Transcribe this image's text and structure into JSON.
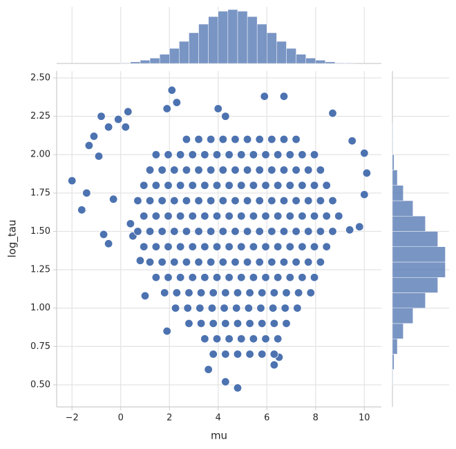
{
  "chart_data": [
    {
      "type": "scatter",
      "xlabel": "mu",
      "ylabel": "log_tau",
      "xlim": [
        -2.63,
        10.7
      ],
      "ylim": [
        0.356,
        2.545
      ],
      "xticks": [
        {
          "value": -2,
          "label": "−2"
        },
        0,
        2,
        4,
        6,
        8,
        10
      ],
      "yticks": [
        {
          "value": 0.5,
          "label": "0.50"
        },
        {
          "value": 0.75,
          "label": "0.75"
        },
        {
          "value": 1.0,
          "label": "1.00"
        },
        {
          "value": 1.25,
          "label": "1.25"
        },
        {
          "value": 1.5,
          "label": "1.50"
        },
        {
          "value": 1.75,
          "label": "1.75"
        },
        {
          "value": 2.0,
          "label": "2.00"
        },
        {
          "value": 2.25,
          "label": "2.25"
        },
        {
          "value": 2.5,
          "label": "2.50"
        }
      ],
      "grid": true,
      "series": [
        {
          "color": "#4c72b0",
          "x": [
            -2,
            -1.6,
            -1.4,
            -1.3,
            -1.1,
            -0.9,
            -0.8,
            -0.7,
            -0.5,
            -0.5,
            -0.3,
            -0.1,
            0.2,
            0.3,
            0.4,
            0.5,
            1.9,
            2.1,
            2.3,
            4.0,
            4.3,
            5.9,
            6.7,
            8.7,
            9.5,
            10.0,
            10.1,
            10.0,
            9.8,
            9.4,
            4.3,
            4.8,
            3.6,
            6.3,
            6.5,
            1.9,
            1.0,
            0.8,
            3.8,
            4.3,
            4.8,
            5.3,
            5.8,
            6.3,
            3.45,
            3.95,
            4.45,
            4.95,
            5.45,
            5.95,
            6.45,
            2.8,
            3.3,
            3.8,
            4.3,
            4.8,
            5.3,
            5.8,
            6.3,
            6.8,
            2.25,
            2.75,
            3.25,
            3.75,
            4.25,
            4.75,
            5.25,
            5.75,
            6.25,
            6.75,
            7.25,
            1.8,
            2.3,
            2.8,
            3.3,
            3.8,
            4.3,
            4.8,
            5.3,
            5.8,
            6.3,
            6.8,
            7.3,
            7.8,
            1.45,
            1.95,
            2.45,
            2.95,
            3.45,
            3.95,
            4.45,
            4.95,
            5.45,
            5.95,
            6.45,
            6.95,
            7.45,
            7.95,
            1.2,
            1.7,
            2.2,
            2.7,
            3.2,
            3.7,
            4.2,
            4.7,
            5.2,
            5.7,
            6.2,
            6.7,
            7.2,
            7.7,
            8.2,
            0.95,
            1.45,
            1.95,
            2.45,
            2.95,
            3.45,
            3.95,
            4.45,
            4.95,
            5.45,
            5.95,
            6.45,
            6.95,
            7.45,
            7.95,
            8.45,
            0.7,
            1.2,
            1.7,
            2.2,
            2.7,
            3.2,
            3.7,
            4.2,
            4.7,
            5.2,
            5.7,
            6.2,
            6.7,
            7.2,
            7.7,
            8.2,
            8.7,
            0.95,
            1.45,
            1.95,
            2.45,
            2.95,
            3.45,
            3.95,
            4.45,
            4.95,
            5.45,
            5.95,
            6.45,
            6.95,
            7.45,
            7.95,
            8.45,
            8.95,
            0.7,
            1.2,
            1.7,
            2.2,
            2.7,
            3.2,
            3.7,
            4.2,
            4.7,
            5.2,
            5.7,
            6.2,
            6.7,
            7.2,
            7.7,
            8.2,
            8.7,
            0.95,
            1.45,
            1.95,
            2.45,
            2.95,
            3.45,
            3.95,
            4.45,
            4.95,
            5.45,
            5.95,
            6.45,
            6.95,
            7.45,
            7.95,
            8.45,
            1.2,
            1.7,
            2.2,
            2.7,
            3.2,
            3.7,
            4.2,
            4.7,
            5.2,
            5.7,
            6.2,
            6.7,
            7.2,
            7.7,
            8.2,
            1.45,
            1.95,
            2.45,
            2.95,
            3.45,
            3.95,
            4.45,
            4.95,
            5.45,
            5.95,
            6.45,
            6.95,
            7.45,
            7.95,
            2.7,
            3.2,
            3.7,
            4.2,
            4.7,
            5.2,
            5.7,
            6.2,
            6.7,
            7.2
          ],
          "values": [
            1.83,
            1.64,
            1.75,
            2.06,
            2.12,
            1.99,
            2.25,
            1.48,
            1.42,
            2.18,
            1.71,
            2.23,
            2.18,
            2.28,
            1.55,
            1.47,
            2.3,
            2.42,
            2.34,
            2.3,
            2.25,
            2.38,
            2.38,
            2.27,
            2.09,
            2.01,
            1.88,
            1.74,
            1.53,
            1.51,
            0.52,
            0.48,
            0.6,
            0.63,
            0.68,
            0.85,
            1.08,
            1.31,
            0.7,
            0.7,
            0.7,
            0.7,
            0.7,
            0.7,
            0.8,
            0.8,
            0.8,
            0.8,
            0.8,
            0.8,
            0.8,
            0.9,
            0.9,
            0.9,
            0.9,
            0.9,
            0.9,
            0.9,
            0.9,
            0.9,
            1.0,
            1.0,
            1.0,
            1.0,
            1.0,
            1.0,
            1.0,
            1.0,
            1.0,
            1.0,
            1.0,
            1.1,
            1.1,
            1.1,
            1.1,
            1.1,
            1.1,
            1.1,
            1.1,
            1.1,
            1.1,
            1.1,
            1.1,
            1.1,
            1.2,
            1.2,
            1.2,
            1.2,
            1.2,
            1.2,
            1.2,
            1.2,
            1.2,
            1.2,
            1.2,
            1.2,
            1.2,
            1.2,
            1.3,
            1.3,
            1.3,
            1.3,
            1.3,
            1.3,
            1.3,
            1.3,
            1.3,
            1.3,
            1.3,
            1.3,
            1.3,
            1.3,
            1.3,
            1.4,
            1.4,
            1.4,
            1.4,
            1.4,
            1.4,
            1.4,
            1.4,
            1.4,
            1.4,
            1.4,
            1.4,
            1.4,
            1.4,
            1.4,
            1.4,
            1.5,
            1.5,
            1.5,
            1.5,
            1.5,
            1.5,
            1.5,
            1.5,
            1.5,
            1.5,
            1.5,
            1.5,
            1.5,
            1.5,
            1.5,
            1.5,
            1.5,
            1.6,
            1.6,
            1.6,
            1.6,
            1.6,
            1.6,
            1.6,
            1.6,
            1.6,
            1.6,
            1.6,
            1.6,
            1.6,
            1.6,
            1.6,
            1.6,
            1.6,
            1.7,
            1.7,
            1.7,
            1.7,
            1.7,
            1.7,
            1.7,
            1.7,
            1.7,
            1.7,
            1.7,
            1.7,
            1.7,
            1.7,
            1.7,
            1.7,
            1.7,
            1.8,
            1.8,
            1.8,
            1.8,
            1.8,
            1.8,
            1.8,
            1.8,
            1.8,
            1.8,
            1.8,
            1.8,
            1.8,
            1.8,
            1.8,
            1.8,
            1.9,
            1.9,
            1.9,
            1.9,
            1.9,
            1.9,
            1.9,
            1.9,
            1.9,
            1.9,
            1.9,
            1.9,
            1.9,
            1.9,
            1.9,
            2.0,
            2.0,
            2.0,
            2.0,
            2.0,
            2.0,
            2.0,
            2.0,
            2.0,
            2.0,
            2.0,
            2.0,
            2.0,
            2.0,
            2.1,
            2.1,
            2.1,
            2.1,
            2.1,
            2.1,
            2.1,
            2.1,
            2.1,
            2.1
          ]
        }
      ]
    },
    {
      "type": "histogram",
      "orientation": "vertical",
      "color": "#4c72b0",
      "ylim": [
        0,
        105
      ],
      "bins": [
        0,
        0.4,
        0.8,
        1.2,
        1.6,
        2.0,
        2.4,
        2.8,
        3.2,
        3.6,
        4.0,
        4.4,
        4.8,
        5.2,
        5.6,
        6.0,
        6.4,
        6.8,
        7.2,
        7.6,
        8.0,
        8.4,
        8.8,
        9.2,
        9.6
      ],
      "values": [
        1,
        3,
        6,
        10,
        17,
        28,
        41,
        57,
        73,
        87,
        97,
        100,
        97,
        87,
        73,
        57,
        41,
        28,
        17,
        10,
        6,
        3,
        1,
        1
      ]
    },
    {
      "type": "histogram",
      "orientation": "horizontal",
      "color": "#4c72b0",
      "xlim": [
        0,
        105
      ],
      "bins": [
        0.5,
        0.6,
        0.7,
        0.8,
        0.9,
        1.0,
        1.1,
        1.2,
        1.3,
        1.4,
        1.5,
        1.6,
        1.7,
        1.8,
        1.9,
        2.0,
        2.1,
        2.2
      ],
      "values": [
        1,
        3,
        9,
        20,
        38,
        61,
        84,
        98,
        98,
        84,
        61,
        38,
        20,
        9,
        3,
        1,
        1
      ]
    }
  ]
}
